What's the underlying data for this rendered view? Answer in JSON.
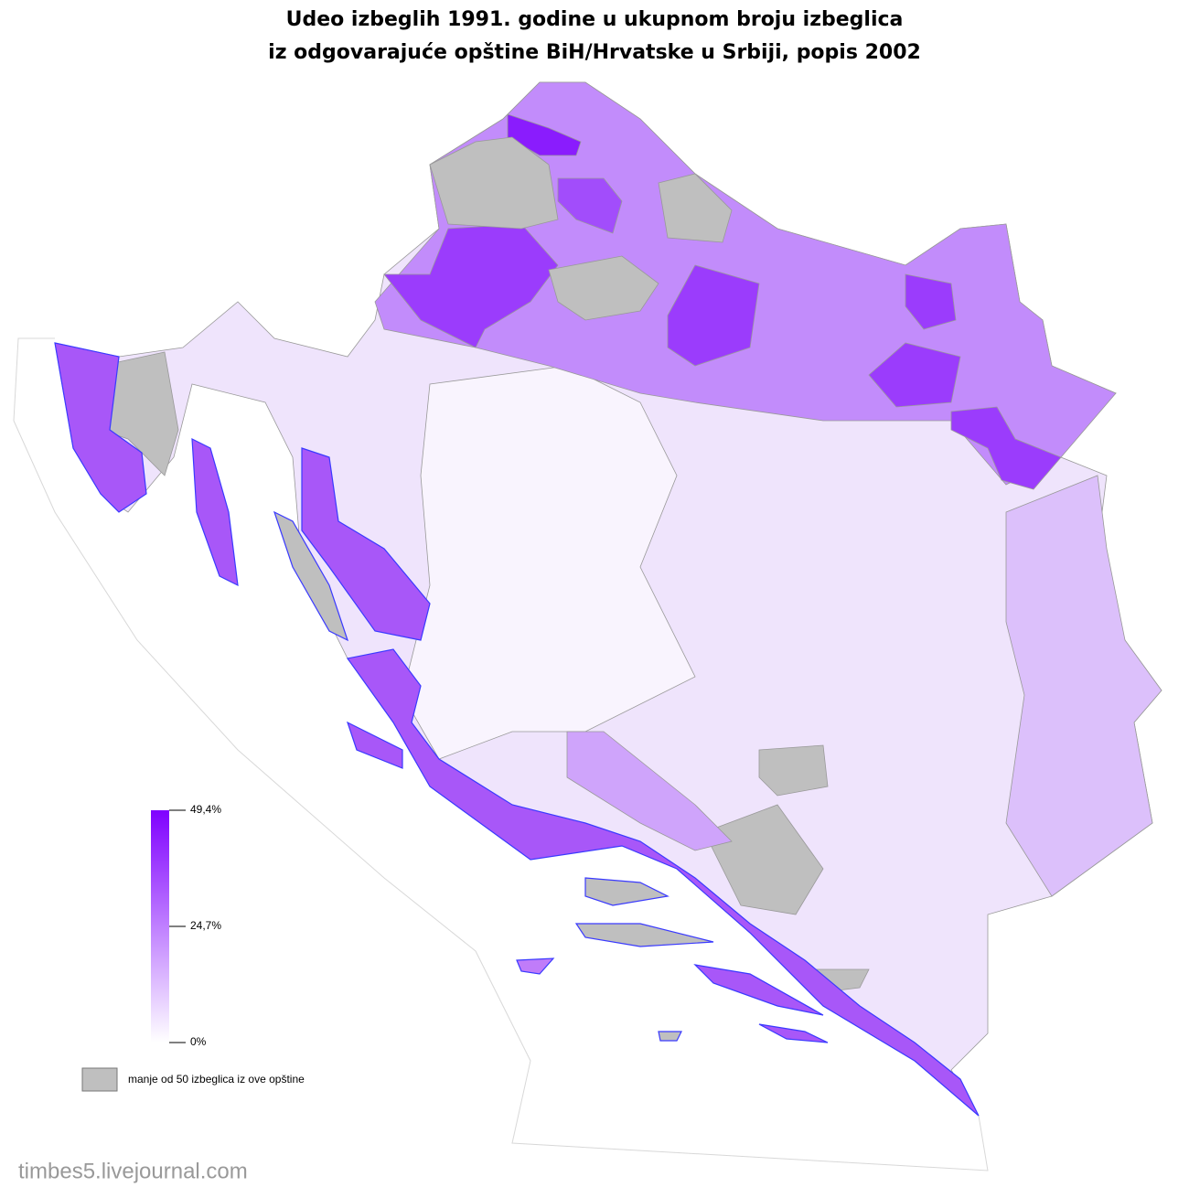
{
  "title_lines": [
    "Udeo izbeglih 1991. godine u ukupnom broju izbeglica",
    "iz odgovarajuće opštine BiH/Hrvatske u Srbiji, popis 2002"
  ],
  "legend": {
    "lim": [
      0,
      49.4
    ],
    "ticks": [
      {
        "value": 49.4,
        "label": "49,4%"
      },
      {
        "value": 24.7,
        "label": "24,7%"
      },
      {
        "value": 0,
        "label": "0%"
      }
    ],
    "color_low": "#ffffff",
    "color_high": "#7f00ff",
    "missing": {
      "color": "#bfbfbf",
      "label": "manje od 50 izbeglica iz ove opštine"
    }
  },
  "watermark": "timbes5.livejournal.com"
}
